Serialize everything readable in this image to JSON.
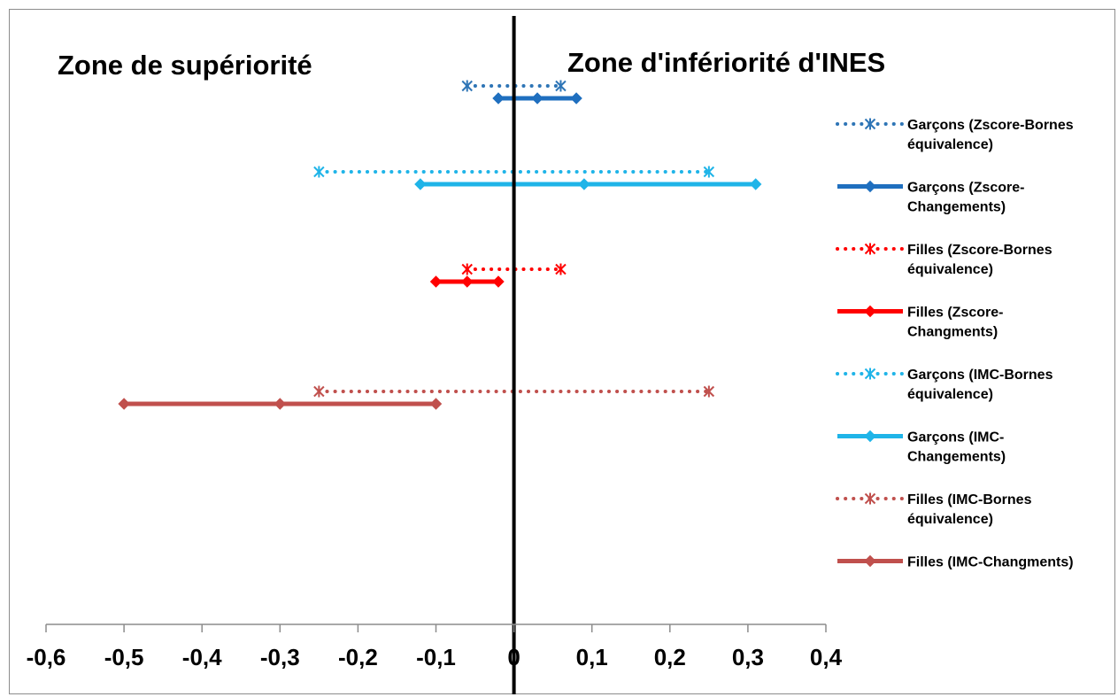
{
  "chart_data": {
    "type": "line",
    "annotations": {
      "left_zone": "Zone de supériorité",
      "right_zone": "Zone d'infériorité d'INES"
    },
    "xlim": [
      -0.6,
      0.4
    ],
    "x_ticks": [
      -0.6,
      -0.5,
      -0.4,
      -0.3,
      -0.2,
      -0.1,
      0,
      0.1,
      0.2,
      0.3,
      0.4
    ],
    "x_tick_labels": [
      "-0,6",
      "-0,5",
      "-0,4",
      "-0,3",
      "-0,2",
      "-0,1",
      "0",
      "0,1",
      "0,2",
      "0,3",
      "0,4"
    ],
    "vertical_reference_line": 0,
    "grid": false,
    "legend_position": "right",
    "series": [
      {
        "name": "Garçons (Zscore-Bornes équivalence)",
        "legend_lines": [
          "Garçons (Zscore-Bornes",
          "équivalence)"
        ],
        "color": "#2e75b6",
        "style": "dotted",
        "marker": "star",
        "row": 1,
        "x": [
          -0.06,
          0.06
        ]
      },
      {
        "name": "Garçons (Zscore-Changements)",
        "legend_lines": [
          "Garçons (Zscore-",
          "Changements)"
        ],
        "color": "#1f6fbf",
        "style": "solid",
        "marker": "diamond",
        "row": 2,
        "x": [
          -0.02,
          0.03,
          0.08
        ]
      },
      {
        "name": "Garçons (IMC-Bornes équivalence)",
        "legend_lines": [
          "Garçons (IMC-Bornes",
          "équivalence)"
        ],
        "color": "#1fb4e8",
        "style": "dotted",
        "marker": "star",
        "row": 3,
        "x": [
          -0.25,
          0.25
        ]
      },
      {
        "name": "Garçons (IMC-Changements)",
        "legend_lines": [
          "Garçons (IMC-",
          "Changements)"
        ],
        "color": "#1fb4e8",
        "style": "solid",
        "marker": "diamond",
        "row": 4,
        "x": [
          -0.12,
          0.09,
          0.31
        ]
      },
      {
        "name": "Filles (Zscore-Bornes équivalence)",
        "legend_lines": [
          "Filles (Zscore-Bornes",
          "équivalence)"
        ],
        "color": "#ff0000",
        "style": "dotted",
        "marker": "star",
        "row": 5,
        "x": [
          -0.06,
          0.06
        ]
      },
      {
        "name": "Filles (Zscore-Changments)",
        "legend_lines": [
          "Filles (Zscore-",
          "Changments)"
        ],
        "color": "#ff0000",
        "style": "solid",
        "marker": "diamond",
        "row": 6,
        "x": [
          -0.1,
          -0.06,
          -0.02
        ]
      },
      {
        "name": "Filles (IMC-Bornes équivalence)",
        "legend_lines": [
          "Filles (IMC-Bornes",
          "équivalence)"
        ],
        "color": "#c0504d",
        "style": "dotted",
        "marker": "star",
        "row": 7,
        "x": [
          -0.25,
          0.25
        ]
      },
      {
        "name": "Filles (IMC-Changments)",
        "legend_lines": [
          "Filles (IMC-Changments)"
        ],
        "color": "#c0504d",
        "style": "solid",
        "marker": "diamond",
        "row": 8,
        "x": [
          -0.5,
          -0.3,
          -0.1
        ]
      }
    ],
    "legend_order": [
      0,
      1,
      4,
      5,
      2,
      3,
      6,
      7
    ]
  }
}
